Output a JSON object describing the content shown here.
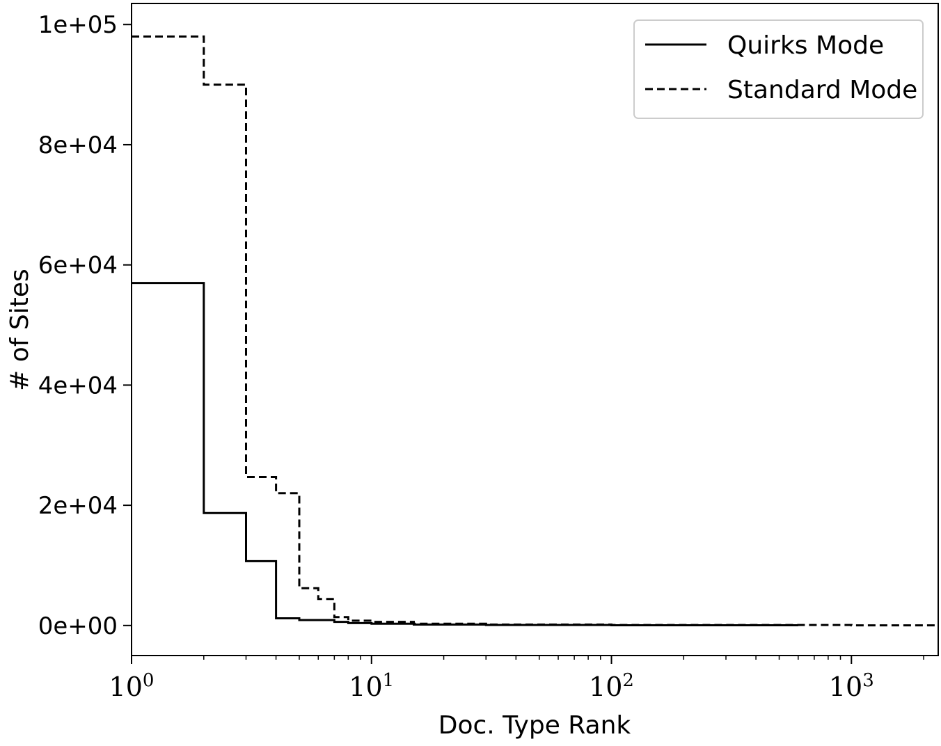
{
  "chart_data": {
    "type": "line",
    "title": "",
    "xlabel": "Doc. Type Rank",
    "ylabel": "# of Sites",
    "x_scale": "log",
    "xlim": [
      1,
      2300
    ],
    "ylim": [
      -5000,
      103500
    ],
    "grid": false,
    "legend_position": "top-right",
    "x_ticks": [
      {
        "value": 1,
        "base": "10",
        "exp": "0"
      },
      {
        "value": 10,
        "base": "10",
        "exp": "1"
      },
      {
        "value": 100,
        "base": "10",
        "exp": "2"
      },
      {
        "value": 1000,
        "base": "10",
        "exp": "3"
      }
    ],
    "y_ticks": [
      {
        "value": 0,
        "label": "0e+00"
      },
      {
        "value": 20000,
        "label": "2e+04"
      },
      {
        "value": 40000,
        "label": "4e+04"
      },
      {
        "value": 60000,
        "label": "6e+04"
      },
      {
        "value": 80000,
        "label": "8e+04"
      },
      {
        "value": 100000,
        "label": "1e+05"
      }
    ],
    "series": [
      {
        "name": "Quirks Mode",
        "style": "solid",
        "color": "#000000",
        "x": [
          1,
          2,
          3,
          4,
          5,
          7,
          8,
          10,
          15,
          30,
          100,
          600
        ],
        "y": [
          57000,
          18700,
          10700,
          1200,
          900,
          600,
          400,
          300,
          150,
          80,
          40,
          10
        ]
      },
      {
        "name": "Standard Mode",
        "style": "dashed",
        "color": "#000000",
        "x": [
          1,
          2,
          3,
          4,
          5,
          6,
          7,
          8,
          10,
          15,
          30,
          100,
          1000,
          2300
        ],
        "y": [
          98000,
          90000,
          24700,
          22000,
          6200,
          4400,
          1400,
          800,
          600,
          300,
          150,
          80,
          20,
          10
        ]
      }
    ]
  }
}
